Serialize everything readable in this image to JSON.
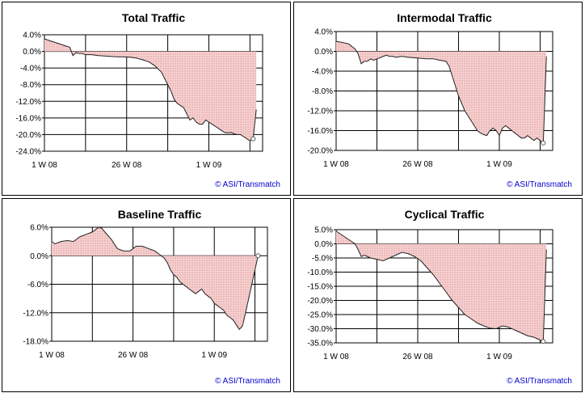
{
  "colors": {
    "fill": "#f6d2d2",
    "dots": "#d97a7a",
    "line": "#222222",
    "credit": "#0000cc"
  },
  "chart_data": [
    {
      "type": "area",
      "title": "Total Traffic",
      "y_ticks": [
        "4.0%",
        "0.0%",
        "-4.0%",
        "-8.0%",
        "-12.0%",
        "-16.0%",
        "-20.0%",
        "-24.0%"
      ],
      "ylim": [
        -24,
        4
      ],
      "x_ticks": [
        "1 W 08",
        "26 W 08",
        "1 W 09"
      ],
      "xlim": [
        1,
        70
      ],
      "credit": "© ASI/Transmatch",
      "x": [
        1,
        3,
        5,
        7,
        9,
        10,
        11,
        12,
        13,
        14,
        16,
        18,
        20,
        22,
        24,
        26,
        28,
        30,
        32,
        34,
        36,
        38,
        40,
        41,
        42,
        43,
        44,
        45,
        46,
        47,
        48,
        49,
        50,
        51,
        52,
        53,
        54,
        55,
        56,
        57,
        58,
        59,
        60,
        61,
        62,
        63,
        64,
        65,
        66,
        67,
        68
      ],
      "values": [
        3.0,
        2.5,
        2.0,
        1.5,
        1.0,
        -1.0,
        -0.3,
        -0.5,
        -0.5,
        -0.8,
        -0.8,
        -1.0,
        -1.1,
        -1.2,
        -1.3,
        -1.3,
        -1.4,
        -1.6,
        -2.0,
        -2.5,
        -3.5,
        -5.0,
        -8.0,
        -9.5,
        -11.5,
        -12.5,
        -13.0,
        -13.5,
        -15.0,
        -16.5,
        -16.0,
        -17.0,
        -17.5,
        -17.5,
        -16.5,
        -17.0,
        -17.5,
        -18.0,
        -18.5,
        -19.0,
        -19.5,
        -19.6,
        -19.5,
        -19.8,
        -20.0,
        -20.0,
        -20.5,
        -21.0,
        -21.5,
        -21.0,
        -14.0
      ]
    },
    {
      "type": "area",
      "title": "Intermodal Traffic",
      "y_ticks": [
        "4.0%",
        "0.0%",
        "-4.0%",
        "-8.0%",
        "-12.0%",
        "-16.0%",
        "-20.0%"
      ],
      "ylim": [
        -20,
        4
      ],
      "x_ticks": [
        "1 W 08",
        "26 W 08",
        "1 W 09"
      ],
      "xlim": [
        1,
        70
      ],
      "credit": "© ASI/Transmatch",
      "x": [
        1,
        3,
        5,
        7,
        8,
        9,
        10,
        11,
        12,
        13,
        14,
        15,
        16,
        17,
        18,
        19,
        20,
        22,
        24,
        26,
        28,
        30,
        32,
        34,
        36,
        37,
        38,
        39,
        40,
        41,
        42,
        43,
        44,
        45,
        46,
        47,
        48,
        49,
        50,
        51,
        52,
        53,
        54,
        55,
        56,
        57,
        58,
        59,
        60,
        61,
        62,
        63,
        64,
        65,
        66,
        67,
        68
      ],
      "values": [
        2.0,
        1.8,
        1.5,
        0.5,
        -0.5,
        -2.5,
        -2.0,
        -2.0,
        -1.5,
        -1.8,
        -1.5,
        -1.3,
        -1.0,
        -0.8,
        -1.0,
        -1.0,
        -1.2,
        -1.0,
        -1.2,
        -1.3,
        -1.4,
        -1.5,
        -1.5,
        -1.8,
        -2.0,
        -3.0,
        -5.0,
        -7.0,
        -9.0,
        -10.5,
        -12.0,
        -13.0,
        -14.0,
        -15.0,
        -16.0,
        -16.5,
        -16.8,
        -17.0,
        -16.0,
        -15.5,
        -16.0,
        -17.0,
        -15.5,
        -15.0,
        -15.5,
        -16.0,
        -16.5,
        -17.0,
        -17.5,
        -17.5,
        -17.0,
        -17.5,
        -18.0,
        -17.5,
        -18.0,
        -18.5,
        -1.0
      ]
    },
    {
      "type": "area",
      "title": "Baseline Traffic",
      "y_ticks": [
        "6.0%",
        "0.0%",
        "-6.0%",
        "-12.0%",
        "-18.0%"
      ],
      "ylim": [
        -18,
        6
      ],
      "x_ticks": [
        "1 W 08",
        "26 W 08",
        "1 W 09"
      ],
      "xlim": [
        1,
        70
      ],
      "credit": "© ASI/Transmatch",
      "x": [
        1,
        2,
        4,
        6,
        8,
        10,
        12,
        14,
        16,
        17,
        18,
        20,
        22,
        24,
        26,
        28,
        30,
        32,
        34,
        36,
        37,
        38,
        39,
        40,
        41,
        42,
        43,
        44,
        45,
        46,
        47,
        48,
        49,
        50,
        51,
        52,
        53,
        54,
        55,
        56,
        57,
        58,
        59,
        60,
        61,
        62,
        63,
        64,
        65,
        66,
        67,
        68
      ],
      "values": [
        3.0,
        2.5,
        3.0,
        3.2,
        3.0,
        4.0,
        4.5,
        5.0,
        6.0,
        5.8,
        5.0,
        3.5,
        1.5,
        1.0,
        1.0,
        2.0,
        2.0,
        1.5,
        1.0,
        0.0,
        -0.5,
        -1.5,
        -3.0,
        -4.0,
        -4.5,
        -5.5,
        -6.0,
        -6.5,
        -7.0,
        -7.5,
        -8.0,
        -7.5,
        -7.0,
        -8.0,
        -8.5,
        -9.0,
        -10.0,
        -10.5,
        -11.0,
        -11.5,
        -12.5,
        -13.0,
        -13.5,
        -14.5,
        -15.5,
        -14.8,
        -12.0,
        -9.0,
        -6.0,
        -3.0,
        0.0,
        0.0
      ]
    },
    {
      "type": "area",
      "title": "Cyclical Traffic",
      "y_ticks": [
        "5.0%",
        "0.0%",
        "-5.0%",
        "-10.0%",
        "-15.0%",
        "-20.0%",
        "-25.0%",
        "-30.0%",
        "-35.0%"
      ],
      "ylim": [
        -35,
        5
      ],
      "x_ticks": [
        "1 W 08",
        "26 W 08",
        "1 W 09"
      ],
      "xlim": [
        1,
        70
      ],
      "credit": "© ASI/Transmatch",
      "x": [
        1,
        3,
        5,
        7,
        8,
        9,
        10,
        12,
        14,
        16,
        18,
        20,
        22,
        24,
        26,
        28,
        30,
        32,
        34,
        36,
        38,
        40,
        42,
        44,
        46,
        48,
        50,
        52,
        54,
        56,
        58,
        60,
        62,
        64,
        66,
        67,
        68
      ],
      "values": [
        4.5,
        3.0,
        1.5,
        0.0,
        -2.0,
        -4.5,
        -4.0,
        -5.0,
        -5.5,
        -6.0,
        -5.0,
        -4.0,
        -3.0,
        -3.5,
        -4.5,
        -6.0,
        -8.5,
        -11.0,
        -14.0,
        -17.0,
        -20.0,
        -22.5,
        -25.0,
        -26.5,
        -28.0,
        -29.0,
        -29.8,
        -30.0,
        -29.0,
        -29.5,
        -30.5,
        -31.5,
        -32.5,
        -33.0,
        -34.0,
        -34.5,
        -2.0
      ]
    }
  ]
}
